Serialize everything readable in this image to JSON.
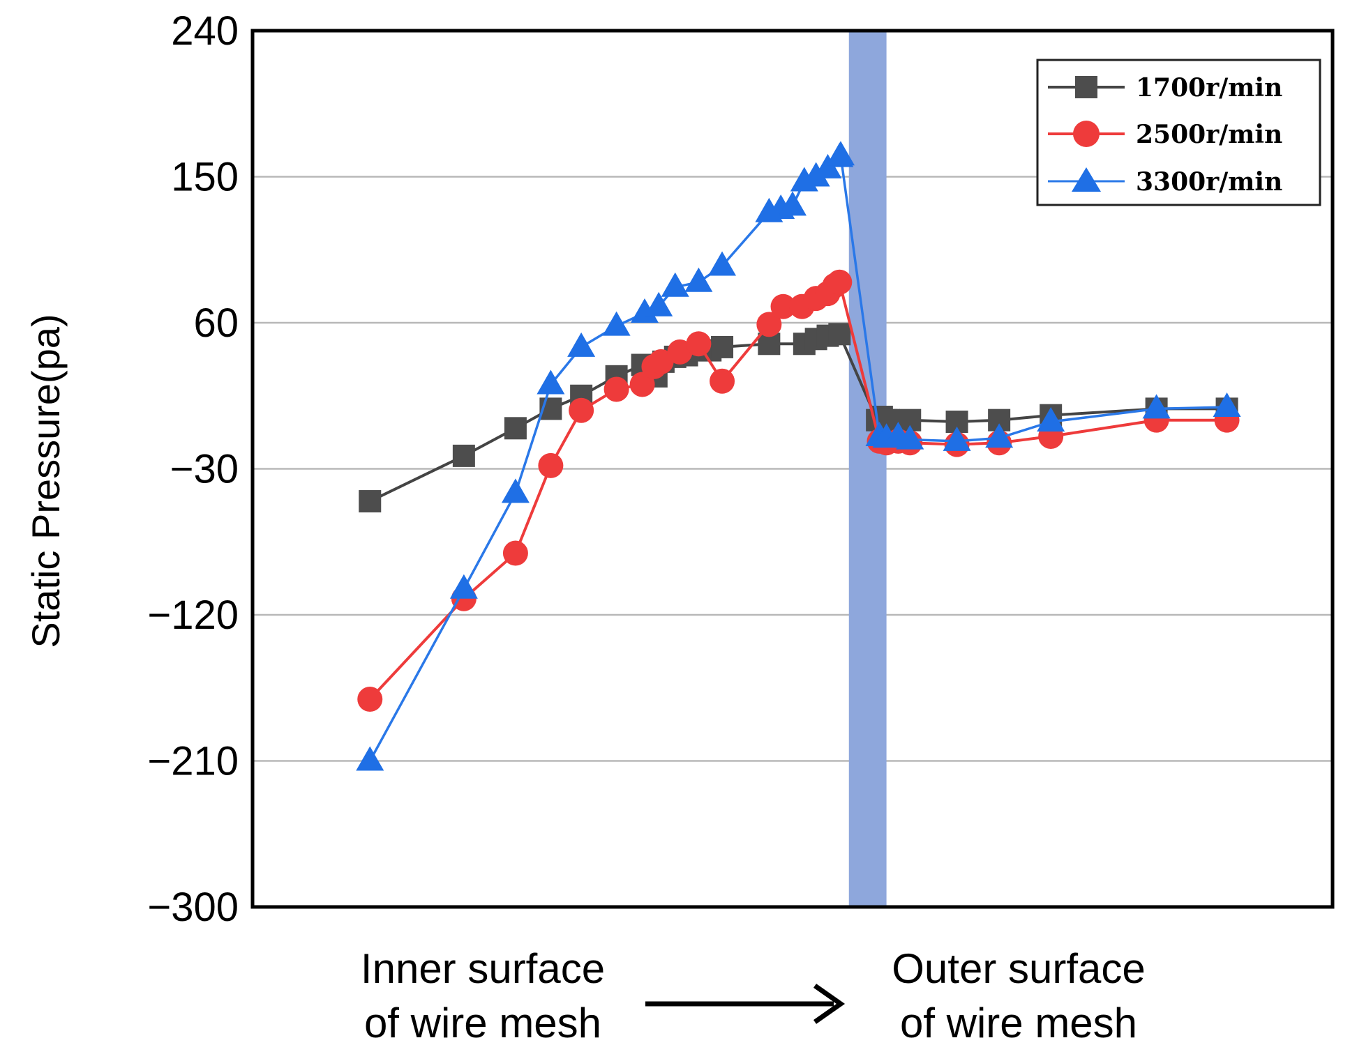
{
  "chart_data": {
    "type": "line",
    "title": "",
    "xlabel": "",
    "ylabel": "Static Pressure(pa)",
    "ylim": [
      -300,
      240
    ],
    "yticks": [
      240,
      150,
      60,
      -30,
      -120,
      -210,
      -300
    ],
    "ytick_labels": [
      "240",
      "150",
      "60",
      "−30",
      "−120",
      "−210",
      "−300"
    ],
    "grid": true,
    "legend_position": "top-right",
    "x_left_label": [
      "Inner surface",
      "of wire mesh"
    ],
    "x_right_label": [
      "Outer surface",
      "of wire mesh"
    ],
    "mesh_band": {
      "from": 21.4,
      "to": 23.0,
      "color": "#8ea7dc"
    },
    "series": [
      {
        "name": "1700r/min",
        "color": "#4d4d4d",
        "line_color": "#444444",
        "marker": "square",
        "x": [
          1,
          5,
          7.2,
          8.7,
          10,
          11.5,
          12.6,
          13.2,
          13.5,
          14,
          14.5,
          15,
          15.5,
          16,
          18,
          19.5,
          20,
          20.5,
          21,
          22.6,
          22.8,
          23,
          23.1,
          24,
          26,
          27.8,
          30,
          34.5,
          37.5
        ],
        "y": [
          -50,
          -22,
          -5,
          7,
          15,
          27,
          34,
          27,
          36,
          39,
          40,
          43,
          43,
          45,
          47,
          47,
          50,
          52,
          53,
          0,
          2,
          0,
          0,
          0,
          -1,
          0,
          3,
          7,
          7
        ]
      },
      {
        "name": "2500r/min",
        "color": "#ee3b3b",
        "line_color": "#ee3b3b",
        "marker": "circle",
        "x": [
          1,
          5,
          7.2,
          8.7,
          10,
          11.5,
          12.6,
          13.1,
          13.4,
          14.2,
          15,
          16,
          18,
          18.6,
          19.4,
          20,
          20.5,
          20.8,
          21,
          22.7,
          23,
          23.5,
          24,
          26,
          27.8,
          30,
          34.5,
          37.5
        ],
        "y": [
          -172,
          -110,
          -82,
          -28,
          6,
          19,
          22,
          33,
          36,
          42,
          47,
          24,
          59,
          70,
          70,
          75,
          78,
          83,
          85,
          -13,
          -14,
          -13,
          -14,
          -15,
          -14,
          -10,
          0,
          0
        ]
      },
      {
        "name": "3300r/min",
        "color": "#1f6fe5",
        "line_color": "#2a78e8",
        "marker": "triangle",
        "x": [
          1,
          5,
          7.2,
          8.7,
          10,
          11.5,
          12.7,
          13.3,
          14,
          15,
          16,
          18,
          18.5,
          19,
          19.5,
          20,
          20.5,
          21,
          21.05,
          22.7,
          23,
          23.5,
          24,
          26,
          27.8,
          30,
          34.5,
          37.5
        ],
        "y": [
          -210,
          -104,
          -45,
          22,
          45,
          58,
          66,
          70,
          82,
          85,
          95,
          128,
          130,
          132,
          147,
          150,
          155,
          162,
          163,
          -10,
          -11,
          -10,
          -12,
          -13,
          -11,
          -1,
          7,
          8
        ]
      }
    ]
  }
}
